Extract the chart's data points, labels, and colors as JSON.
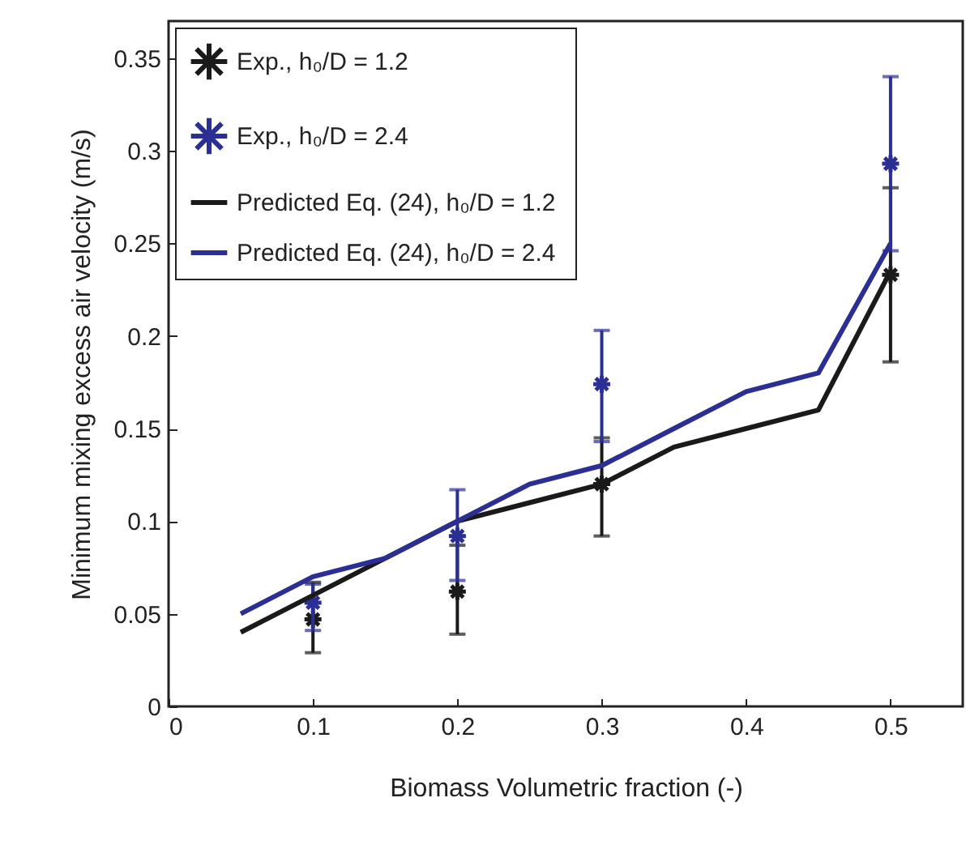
{
  "chart_data": {
    "type": "scatter",
    "xlabel": "Biomass Volumetric fraction (-)",
    "ylabel": "Minimum mixing excess air velocity (m/s)",
    "xlim": [
      0,
      0.55
    ],
    "ylim": [
      0,
      0.37
    ],
    "xticks": [
      0,
      0.1,
      0.2,
      0.3,
      0.4,
      0.5
    ],
    "yticks": [
      0,
      0.05,
      0.1,
      0.15,
      0.2,
      0.25,
      0.3,
      0.35
    ],
    "grid": false,
    "legend": "top left",
    "marker": "cross",
    "series": [
      {
        "name": "Exp., h₀/D = 1.2",
        "color": "#1a1a1a",
        "x": [
          0.1,
          0.2,
          0.3,
          0.5
        ],
        "values": [
          0.047,
          0.062,
          0.12,
          0.233
        ],
        "errors": [
          [
            0.029,
            0.067
          ],
          [
            0.039,
            0.087
          ],
          [
            0.092,
            0.145
          ],
          [
            0.186,
            0.28
          ]
        ]
      },
      {
        "name": "Exp., h₀/D = 2.4",
        "color": "#2b2f94",
        "x": [
          0.1,
          0.2,
          0.3,
          0.5
        ],
        "values": [
          0.056,
          0.092,
          0.174,
          0.293
        ],
        "errors": [
          [
            0.041,
            0.066
          ],
          [
            0.068,
            0.117
          ],
          [
            0.143,
            0.203
          ],
          [
            0.246,
            0.34
          ]
        ]
      },
      {
        "name": "Predicted Eq. (24), h₀/D = 1.2",
        "type": "line",
        "marker": "none",
        "color": "#1a1a1a",
        "x": [
          0.05,
          0.1,
          0.15,
          0.2,
          0.25,
          0.3,
          0.35,
          0.4,
          0.45,
          0.5
        ],
        "values": [
          0.04,
          0.06,
          0.08,
          0.1,
          0.11,
          0.12,
          0.14,
          0.15,
          0.16,
          0.235
        ]
      },
      {
        "name": "Predicted Eq. (24),  h₀/D = 2.4",
        "type": "line",
        "marker": "none",
        "color": "#2b2f94",
        "x": [
          0.05,
          0.1,
          0.15,
          0.2,
          0.25,
          0.3,
          0.35,
          0.4,
          0.45,
          0.5
        ],
        "values": [
          0.05,
          0.07,
          0.08,
          0.1,
          0.12,
          0.13,
          0.15,
          0.17,
          0.18,
          0.25
        ]
      }
    ]
  }
}
